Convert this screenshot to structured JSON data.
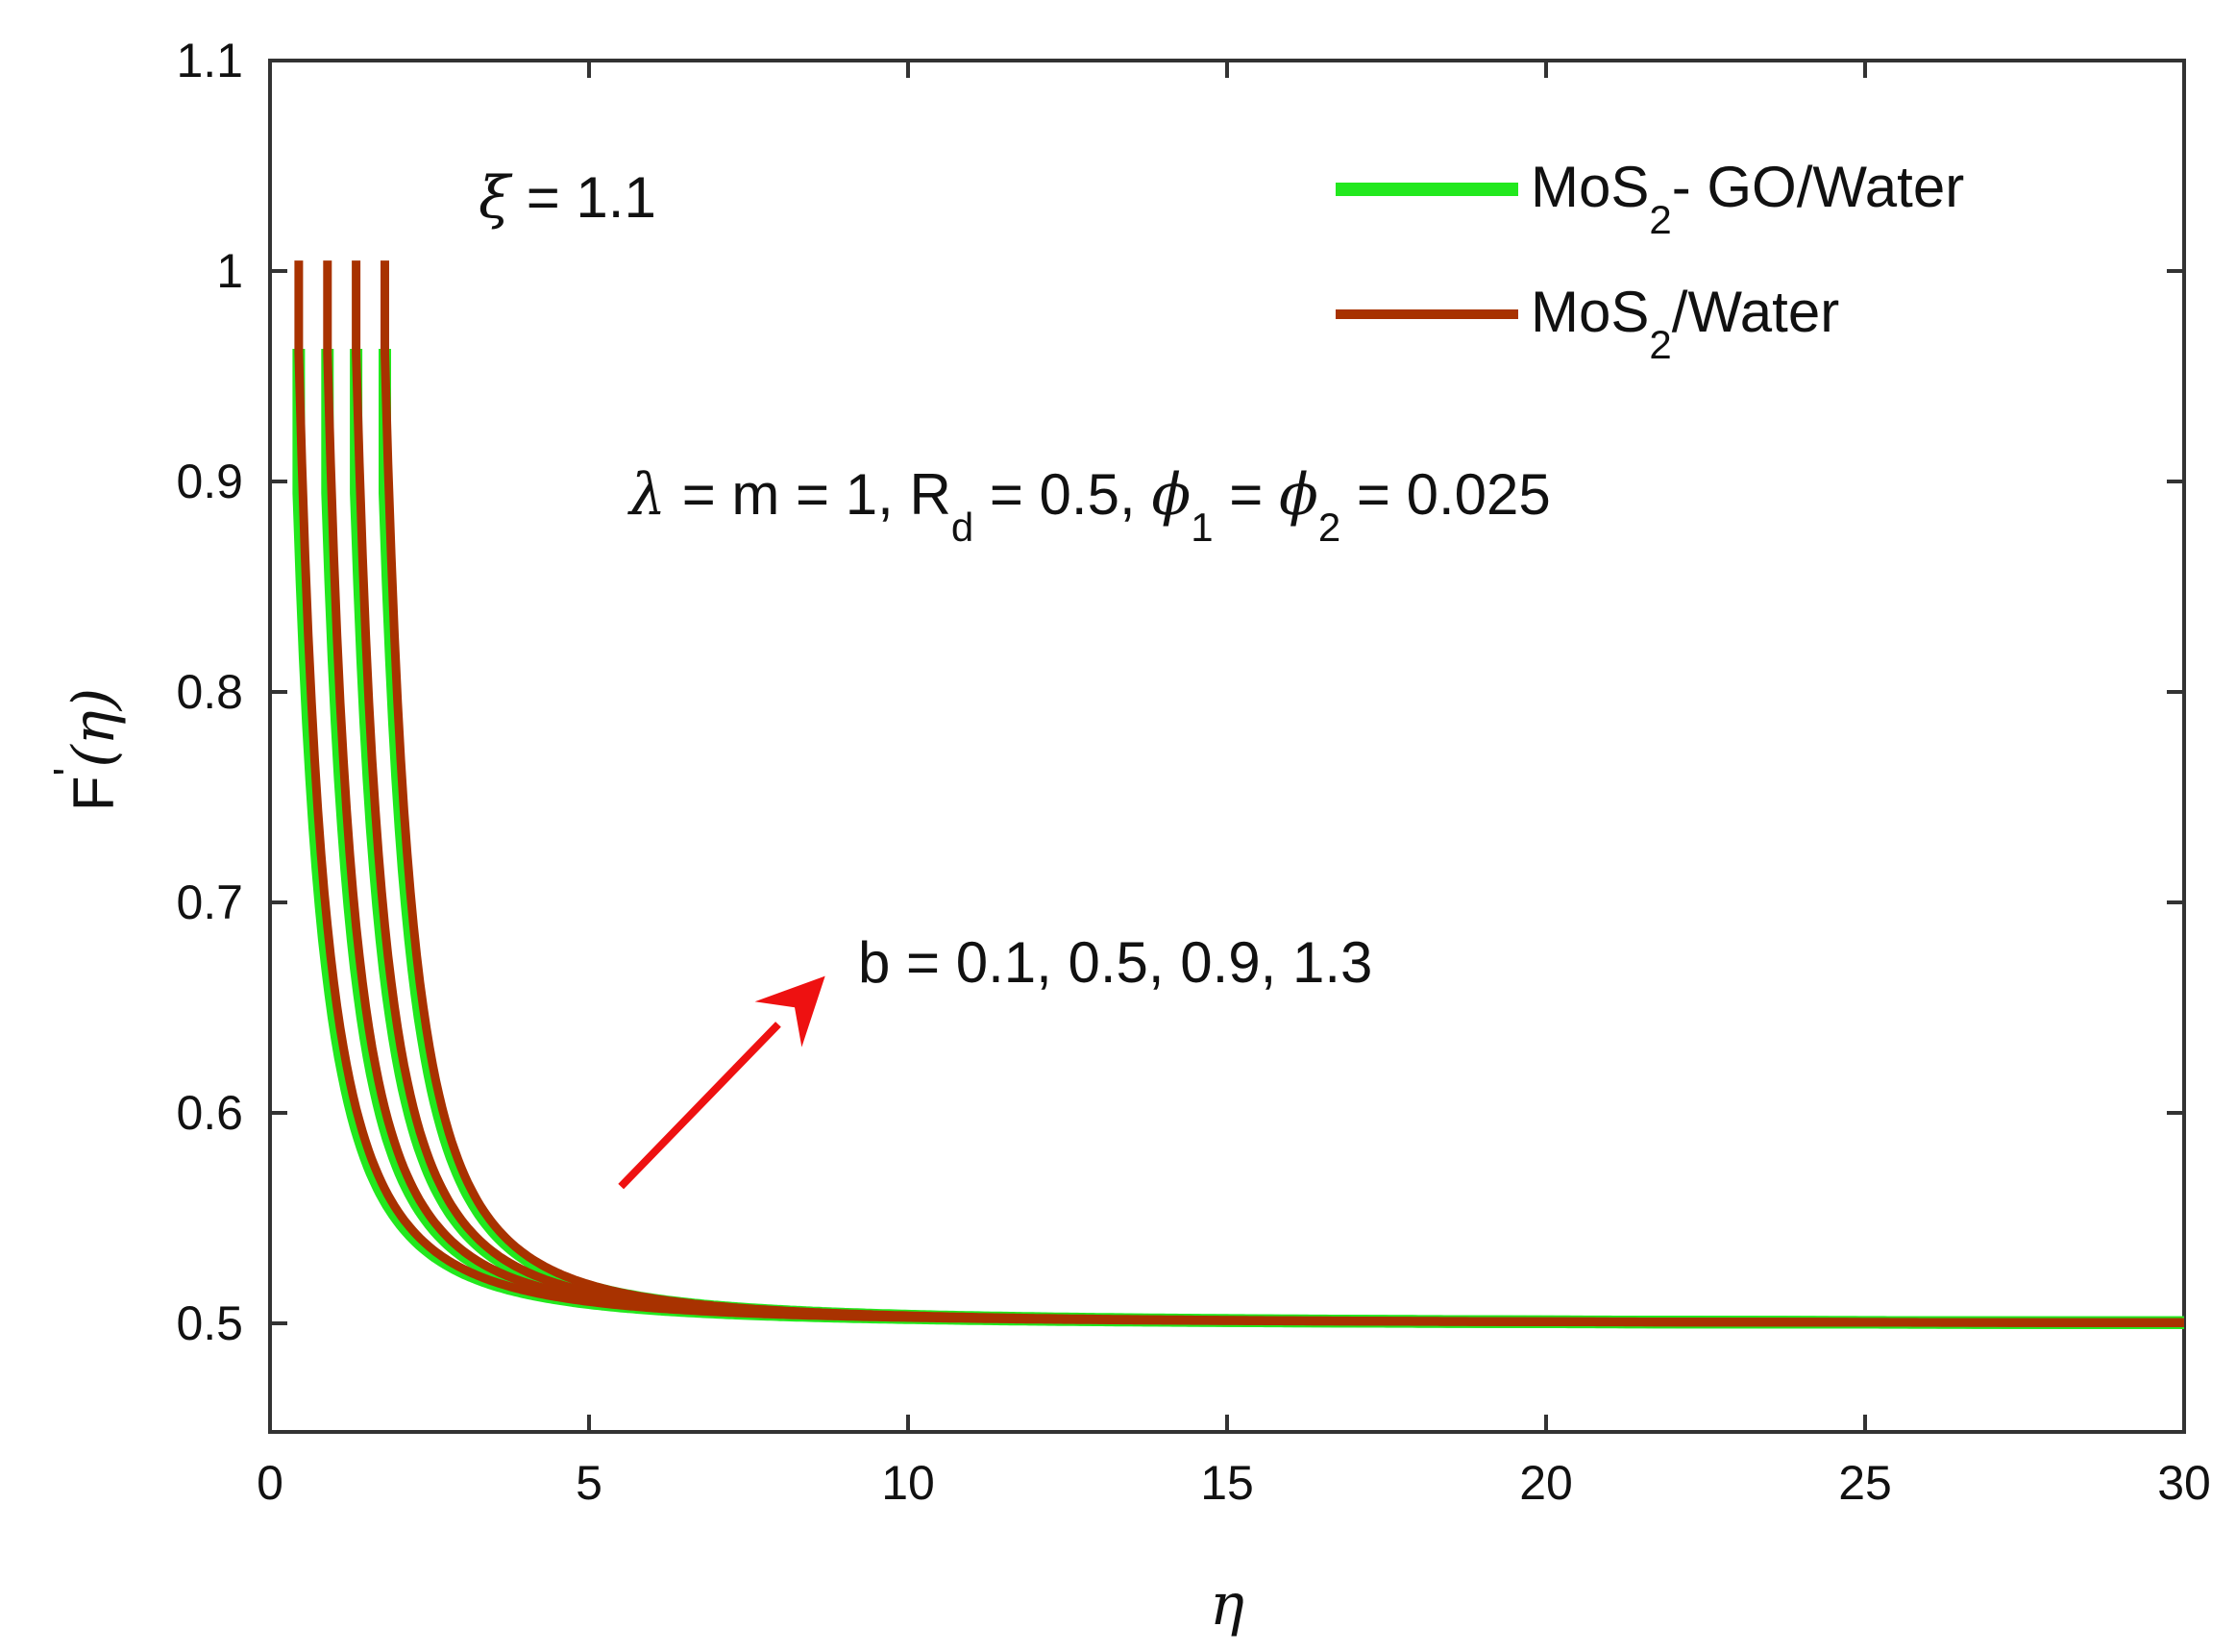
{
  "chart_data": {
    "type": "line",
    "title": "",
    "xlabel": "η",
    "ylabel_main": "F",
    "ylabel_prime": "'",
    "ylabel_arg": "(η)",
    "xlim": [
      0,
      30
    ],
    "ylim": [
      0.45,
      1.1
    ],
    "xticks": [
      0,
      5,
      10,
      15,
      20,
      25,
      30
    ],
    "yticks": [
      0.5,
      0.6,
      0.7,
      0.8,
      0.9,
      1,
      1.1
    ],
    "xtick_labels": [
      "0",
      "5",
      "10",
      "15",
      "20",
      "25",
      "30"
    ],
    "ytick_labels": [
      "0.5",
      "0.6",
      "0.7",
      "0.8",
      "0.9",
      "1",
      "1.1"
    ],
    "grid": false,
    "legend_position": "top-right",
    "colors": {
      "green": "#22e81e",
      "brown": "#a83200",
      "arrow": "#ee1111",
      "axis": "#333333"
    },
    "legend": [
      {
        "pre": "MoS",
        "sub": "2",
        "post": "- GO/Water",
        "color": "#22e81e"
      },
      {
        "pre": "MoS",
        "sub": "2",
        "post": "/Water",
        "color": "#a83200"
      }
    ],
    "annotations": {
      "xi_symbol": "ξ",
      "xi_text": " = 1.1",
      "params_lambda": "λ",
      "params_part1": " = m = 1, R",
      "params_sub_d": "d",
      "params_part2": " = 0.5, ",
      "params_phi": "ϕ",
      "params_sub1": "1",
      "params_eq": " = ",
      "params_sub2": "2",
      "params_part3": " = 0.025",
      "b_label": "b = 0.1, 0.5, 0.9, 1.3"
    },
    "curve_model": "F'(η) = 0.5 + C / (η - s)^2, starting at η = s0",
    "series": [
      {
        "name": "MoS2- GO/Water, b = 0.1",
        "color": "#22e81e",
        "start_eta": 0.45,
        "start_y": 0.963,
        "shift": -0.4,
        "C": 0.285
      },
      {
        "name": "MoS2- GO/Water, b = 0.5",
        "color": "#22e81e",
        "start_eta": 0.9,
        "start_y": 0.963,
        "shift": 0.05,
        "C": 0.285
      },
      {
        "name": "MoS2- GO/Water, b = 0.9",
        "color": "#22e81e",
        "start_eta": 1.35,
        "start_y": 0.963,
        "shift": 0.5,
        "C": 0.285
      },
      {
        "name": "MoS2- GO/Water, b = 1.3",
        "color": "#22e81e",
        "start_eta": 1.8,
        "start_y": 0.963,
        "shift": 0.95,
        "C": 0.285
      },
      {
        "name": "MoS2/Water, b = 0.1",
        "color": "#a83200",
        "start_eta": 0.45,
        "start_y": 1.005,
        "shift": -0.35,
        "C": 0.295
      },
      {
        "name": "MoS2/Water, b = 0.5",
        "color": "#a83200",
        "start_eta": 0.9,
        "start_y": 1.005,
        "shift": 0.1,
        "C": 0.295
      },
      {
        "name": "MoS2/Water, b = 0.9",
        "color": "#a83200",
        "start_eta": 1.35,
        "start_y": 1.005,
        "shift": 0.55,
        "C": 0.295
      },
      {
        "name": "MoS2/Water, b = 1.3",
        "color": "#a83200",
        "start_eta": 1.8,
        "start_y": 1.005,
        "shift": 1.0,
        "C": 0.295
      }
    ],
    "arrow": {
      "from": [
        5.5,
        0.565
      ],
      "to": [
        8.7,
        0.665
      ]
    }
  }
}
